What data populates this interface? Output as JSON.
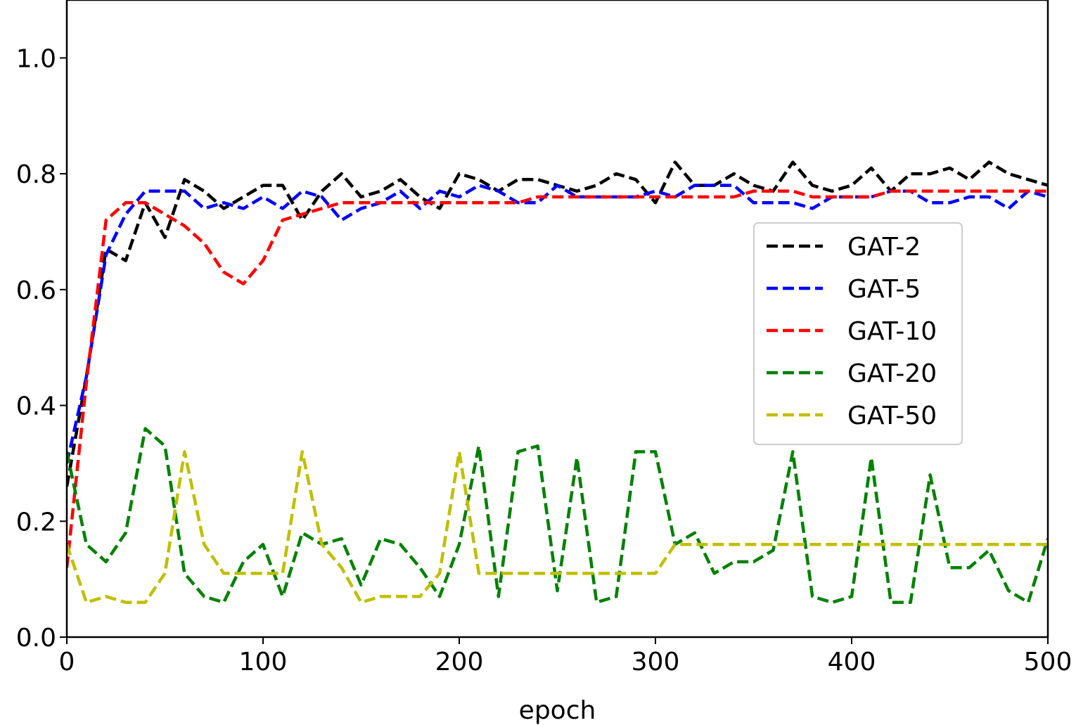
{
  "chart_data": {
    "type": "line",
    "title": "",
    "xlabel": "epoch",
    "ylabel": "",
    "xlim": [
      0,
      500
    ],
    "ylim": [
      0,
      1.1
    ],
    "xticks": [
      0,
      100,
      200,
      300,
      400,
      500
    ],
    "xtick_labels": [
      "0",
      "100",
      "200",
      "300",
      "400",
      "500"
    ],
    "yticks": [
      0.0,
      0.2,
      0.4,
      0.6,
      0.8,
      1.0
    ],
    "ytick_labels": [
      "0.0",
      "0.2",
      "0.4",
      "0.6",
      "0.8",
      "1.0"
    ],
    "grid": false,
    "legend_position": "center-right",
    "x": [
      0,
      10,
      20,
      30,
      40,
      50,
      60,
      70,
      80,
      90,
      100,
      110,
      120,
      130,
      140,
      150,
      160,
      170,
      180,
      190,
      200,
      210,
      220,
      230,
      240,
      250,
      260,
      270,
      280,
      290,
      300,
      310,
      320,
      330,
      340,
      350,
      360,
      370,
      380,
      390,
      400,
      410,
      420,
      430,
      440,
      450,
      460,
      470,
      480,
      490,
      500
    ],
    "series": [
      {
        "name": "GAT-2",
        "color": "#000000",
        "values": [
          0.26,
          0.45,
          0.67,
          0.65,
          0.75,
          0.69,
          0.79,
          0.77,
          0.74,
          0.76,
          0.78,
          0.78,
          0.72,
          0.77,
          0.8,
          0.76,
          0.77,
          0.79,
          0.76,
          0.74,
          0.8,
          0.79,
          0.77,
          0.79,
          0.79,
          0.78,
          0.77,
          0.78,
          0.8,
          0.79,
          0.75,
          0.82,
          0.78,
          0.78,
          0.8,
          0.78,
          0.77,
          0.82,
          0.78,
          0.77,
          0.78,
          0.81,
          0.77,
          0.8,
          0.8,
          0.81,
          0.79,
          0.82,
          0.8,
          0.79,
          0.78
        ]
      },
      {
        "name": "GAT-5",
        "color": "#0000ff",
        "values": [
          0.3,
          0.45,
          0.66,
          0.73,
          0.77,
          0.77,
          0.77,
          0.74,
          0.75,
          0.74,
          0.76,
          0.74,
          0.77,
          0.76,
          0.72,
          0.74,
          0.75,
          0.77,
          0.74,
          0.77,
          0.76,
          0.78,
          0.77,
          0.75,
          0.75,
          0.78,
          0.76,
          0.76,
          0.76,
          0.76,
          0.77,
          0.76,
          0.78,
          0.78,
          0.78,
          0.75,
          0.75,
          0.75,
          0.74,
          0.76,
          0.76,
          0.76,
          0.77,
          0.77,
          0.75,
          0.75,
          0.76,
          0.76,
          0.74,
          0.77,
          0.76
        ]
      },
      {
        "name": "GAT-10",
        "color": "#ff0000",
        "values": [
          0.12,
          0.44,
          0.72,
          0.75,
          0.75,
          0.73,
          0.71,
          0.68,
          0.63,
          0.61,
          0.65,
          0.72,
          0.73,
          0.74,
          0.75,
          0.75,
          0.75,
          0.75,
          0.75,
          0.75,
          0.75,
          0.75,
          0.75,
          0.75,
          0.76,
          0.76,
          0.76,
          0.76,
          0.76,
          0.76,
          0.76,
          0.76,
          0.76,
          0.76,
          0.76,
          0.77,
          0.77,
          0.77,
          0.76,
          0.76,
          0.76,
          0.76,
          0.77,
          0.77,
          0.77,
          0.77,
          0.77,
          0.77,
          0.77,
          0.77,
          0.77
        ]
      },
      {
        "name": "GAT-20",
        "color": "#008000",
        "values": [
          0.32,
          0.16,
          0.13,
          0.18,
          0.36,
          0.33,
          0.11,
          0.07,
          0.06,
          0.13,
          0.16,
          0.07,
          0.18,
          0.16,
          0.17,
          0.09,
          0.17,
          0.16,
          0.12,
          0.07,
          0.16,
          0.33,
          0.07,
          0.32,
          0.33,
          0.08,
          0.31,
          0.06,
          0.07,
          0.32,
          0.32,
          0.16,
          0.18,
          0.11,
          0.13,
          0.13,
          0.15,
          0.32,
          0.07,
          0.06,
          0.07,
          0.31,
          0.06,
          0.06,
          0.28,
          0.12,
          0.12,
          0.15,
          0.08,
          0.06,
          0.17
        ]
      },
      {
        "name": "GAT-50",
        "color": "#bfbf00",
        "values": [
          0.16,
          0.06,
          0.07,
          0.06,
          0.06,
          0.11,
          0.32,
          0.16,
          0.11,
          0.11,
          0.11,
          0.11,
          0.32,
          0.16,
          0.12,
          0.06,
          0.07,
          0.07,
          0.07,
          0.11,
          0.32,
          0.11,
          0.11,
          0.11,
          0.11,
          0.11,
          0.11,
          0.11,
          0.11,
          0.11,
          0.11,
          0.16,
          0.16,
          0.16,
          0.16,
          0.16,
          0.16,
          0.16,
          0.16,
          0.16,
          0.16,
          0.16,
          0.16,
          0.16,
          0.16,
          0.16,
          0.16,
          0.16,
          0.16,
          0.16,
          0.16
        ]
      }
    ]
  }
}
